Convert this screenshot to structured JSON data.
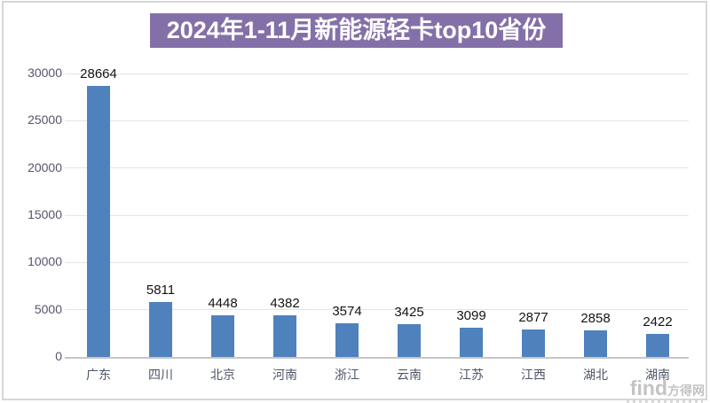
{
  "title": "2024年1-11月新能源轻卡top10省份",
  "watermark": {
    "latin": "find",
    "cn": "方得网"
  },
  "colors": {
    "bar": "#4f81bd",
    "title_bg": "#8470a8",
    "title_text": "#ffffff",
    "grid": "#e4e4e4",
    "baseline": "#c6c6c6",
    "tick_label": "#55556b",
    "category_label": "#4d5668",
    "value_label": "#141414",
    "frame": "#d7d7d7",
    "watermark": "#b9b9b9"
  },
  "chart_data": {
    "type": "bar",
    "title": "2024年1-11月新能源轻卡top10省份",
    "categories": [
      "广东",
      "四川",
      "北京",
      "河南",
      "浙江",
      "云南",
      "江苏",
      "江西",
      "湖北",
      "湖南"
    ],
    "values": [
      28664,
      5811,
      4448,
      4382,
      3574,
      3425,
      3099,
      2877,
      2858,
      2422
    ],
    "xlabel": "",
    "ylabel": "",
    "ylim": [
      0,
      30000
    ],
    "yticks": [
      0,
      5000,
      10000,
      15000,
      20000,
      25000,
      30000
    ],
    "grid": true,
    "legend": "none",
    "data_labels": true
  }
}
